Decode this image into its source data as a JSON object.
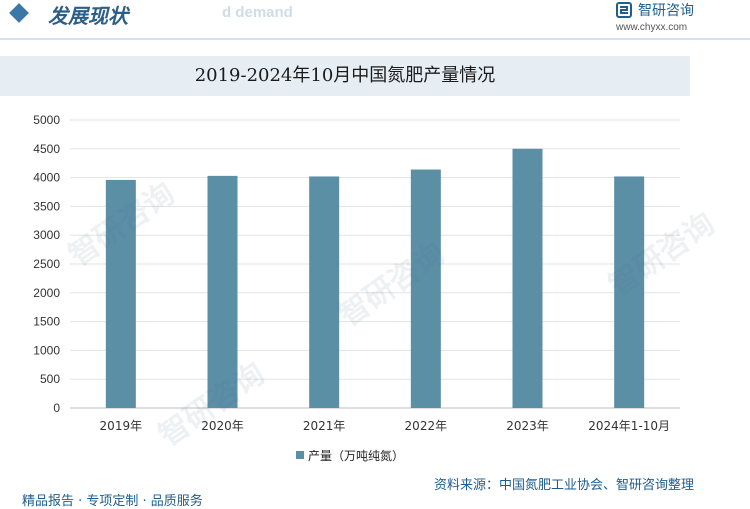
{
  "header": {
    "section_title": "发展现状",
    "section_subtitle": "d demand",
    "brand_name": "智研咨询",
    "brand_url": "www.chyxx.com"
  },
  "colors": {
    "bar": "#5b8fa6",
    "accent": "#2b5f88",
    "title_band": "#e6eef4"
  },
  "chart_data": {
    "type": "bar",
    "title": "2019-2024年10月中国氮肥产量情况",
    "categories": [
      "2019年",
      "2020年",
      "2021年",
      "2022年",
      "2023年",
      "2024年1-10月"
    ],
    "series": [
      {
        "name": "产量（万吨纯氮）",
        "values": [
          3960,
          4030,
          4020,
          4140,
          4500,
          4020
        ]
      }
    ],
    "ylim": [
      0,
      5000
    ],
    "yticks": [
      "0",
      "500",
      "1000",
      "1500",
      "2000",
      "2500",
      "3000",
      "3500",
      "4000",
      "4500",
      "5000"
    ],
    "grid": true,
    "legend": "bottom"
  },
  "source": "资料来源：中国氮肥工业协会、智研咨询整理",
  "footer": "精品报告 · 专项定制 · 品质服务",
  "watermark": "智研咨询"
}
